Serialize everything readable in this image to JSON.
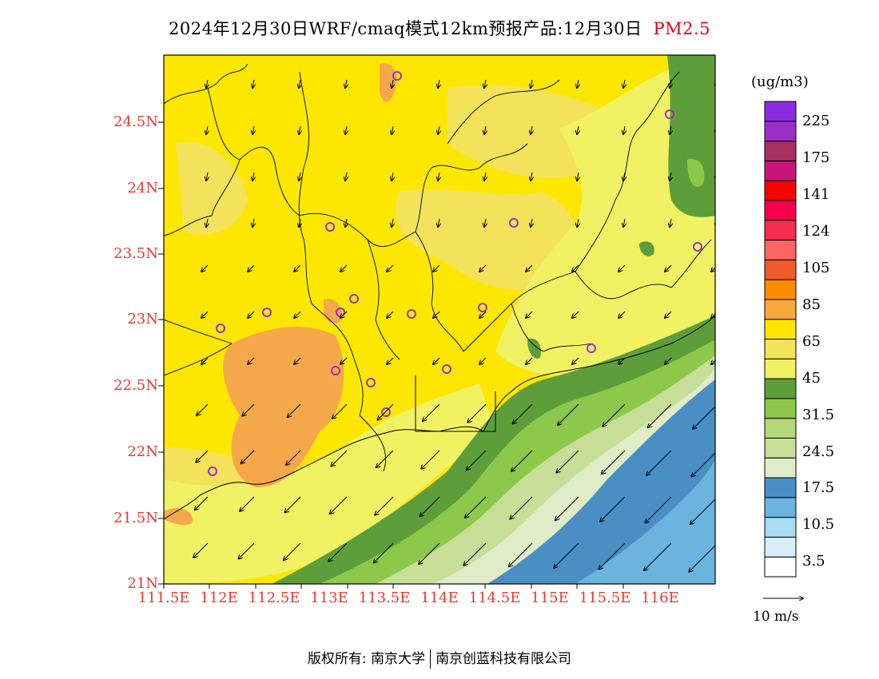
{
  "title": {
    "main": "2024年12月30日WRF/cmaq模式12km预报产品:12月30日",
    "pollutant": "PM2.5"
  },
  "lat_labels": [
    "24.5N",
    "24N",
    "23.5N",
    "23N",
    "22.5N",
    "22N",
    "21.5N",
    "21N"
  ],
  "lon_labels": [
    "111.5E",
    "112E",
    "112.5E",
    "113E",
    "113.5E",
    "114E",
    "114.5E",
    "115E",
    "115.5E",
    "116E"
  ],
  "colorbar": {
    "unit": "(ug/m3)",
    "colors": [
      "#ffffff",
      "#d8eef7",
      "#a8dcf3",
      "#6bb4e0",
      "#4a8fc4",
      "#e0ebc8",
      "#c6de96",
      "#b5d87a",
      "#8cc84a",
      "#5e9e3a",
      "#f0f264",
      "#f3e25a",
      "#ffe500",
      "#f9a93a",
      "#ff8c00",
      "#f05a28",
      "#ff6565",
      "#f62b50",
      "#f5004b",
      "#ff0000",
      "#c8147a",
      "#a83060",
      "#9b30c8",
      "#8a2be2"
    ],
    "tick_labels": [
      "3.5",
      "10.5",
      "17.5",
      "24.5",
      "31.5",
      "45",
      "65",
      "85",
      "105",
      "124",
      "141",
      "175",
      "225"
    ]
  },
  "wind_scale_label": "10 m/s",
  "copyright": {
    "left": "版权所有: 南京大学",
    "right": "南京创蓝科技有限公司"
  }
}
